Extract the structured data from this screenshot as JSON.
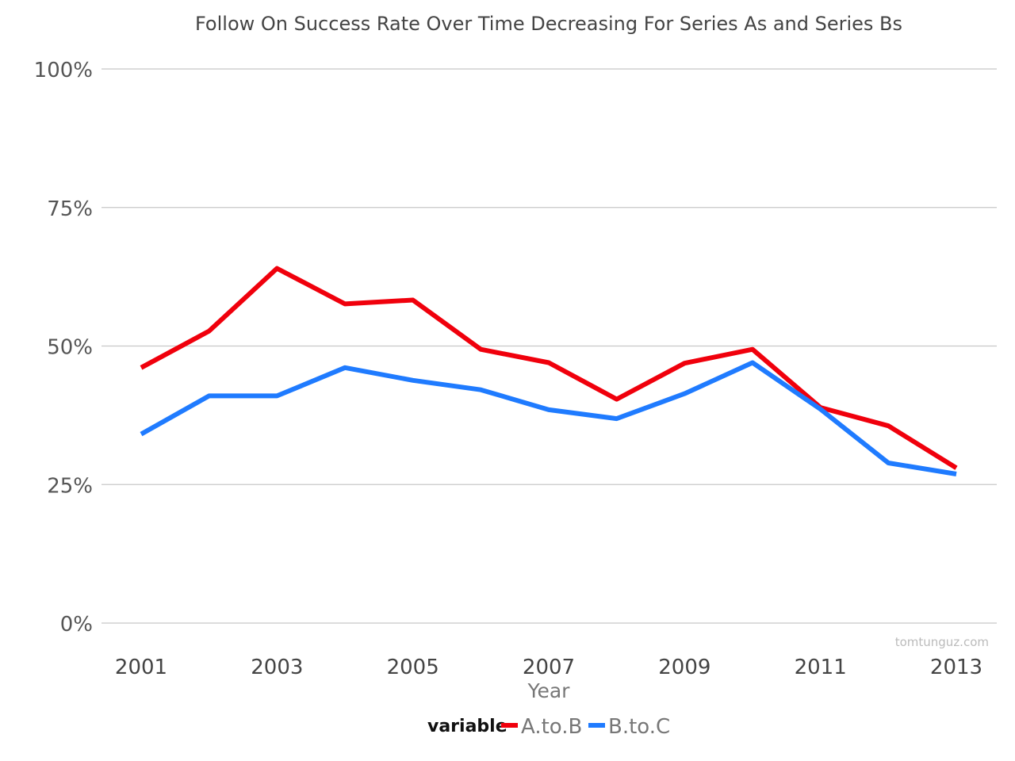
{
  "chart_data": {
    "type": "line",
    "title": "Follow On Success Rate Over Time Decreasing For Series As and Series Bs",
    "xlabel": "Year",
    "ylabel": "",
    "x": [
      2001,
      2002,
      2003,
      2004,
      2005,
      2006,
      2007,
      2008,
      2009,
      2010,
      2011,
      2012,
      2013
    ],
    "xlim": [
      2001,
      2013
    ],
    "xticks": [
      2001,
      2003,
      2005,
      2007,
      2009,
      2011,
      2013
    ],
    "xtick_labels": [
      "2001",
      "2003",
      "2005",
      "2007",
      "2009",
      "2011",
      "2013"
    ],
    "ylim": [
      0,
      1
    ],
    "yticks": [
      0,
      0.25,
      0.5,
      0.75,
      1
    ],
    "ytick_labels": [
      "0%",
      "25%",
      "50%",
      "75%",
      "100%"
    ],
    "grid": "horizontal",
    "legend": {
      "position": "bottom",
      "title": "variable"
    },
    "series": [
      {
        "name": "A.to.B",
        "color": "#f0000c",
        "values": [
          0.461,
          0.527,
          0.64,
          0.576,
          0.583,
          0.494,
          0.47,
          0.404,
          0.469,
          0.494,
          0.389,
          0.356,
          0.28
        ]
      },
      {
        "name": "B.to.C",
        "color": "#1f7bff",
        "values": [
          0.341,
          0.41,
          0.41,
          0.461,
          0.438,
          0.421,
          0.385,
          0.369,
          0.414,
          0.47,
          0.386,
          0.289,
          0.269
        ]
      }
    ],
    "watermark": "tomtunguz.com"
  }
}
